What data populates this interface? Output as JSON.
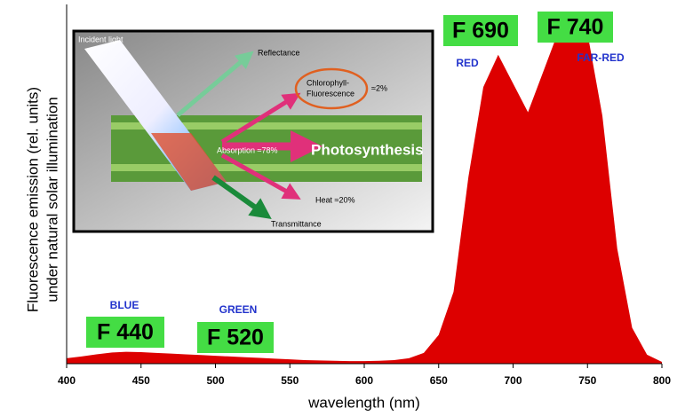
{
  "chart_data": {
    "type": "area",
    "x": [
      400,
      410,
      420,
      430,
      440,
      450,
      460,
      470,
      480,
      490,
      500,
      510,
      520,
      530,
      540,
      550,
      560,
      570,
      580,
      590,
      600,
      610,
      620,
      630,
      640,
      650,
      660,
      670,
      680,
      690,
      700,
      710,
      720,
      730,
      740,
      750,
      760,
      770,
      780,
      790,
      800
    ],
    "values": [
      1.5,
      2,
      2.6,
      3.1,
      3.3,
      3.2,
      3.0,
      2.8,
      2.6,
      2.4,
      2.2,
      2.0,
      1.8,
      1.6,
      1.4,
      1.2,
      1.0,
      0.9,
      0.8,
      0.7,
      0.7,
      0.8,
      1.0,
      1.5,
      3,
      8,
      20,
      52,
      77,
      86,
      78,
      70,
      81,
      92,
      96,
      92,
      69,
      32,
      10,
      2.5,
      0.5
    ],
    "color": "#dd0000",
    "xlim": [
      400,
      800
    ],
    "xticks": [
      400,
      450,
      500,
      550,
      600,
      650,
      700,
      750,
      800
    ],
    "ylim": [
      0,
      100
    ],
    "xlabel": "wavelength  (nm)",
    "ylabel": [
      "Fluorescence emission (rel. units)",
      "under natural solar illumination"
    ],
    "peaks": [
      {
        "label": "F 440",
        "band": "BLUE"
      },
      {
        "label": "F 520",
        "band": "GREEN"
      },
      {
        "label": "F 690",
        "band": "RED"
      },
      {
        "label": "F 740",
        "band": "FAR-RED"
      }
    ],
    "inset": {
      "incident": "Incident light",
      "reflectance": "Reflectance",
      "fluorescence": [
        "Chlorophyll-",
        "Fluorescence"
      ],
      "fluorescence_share": "≈2%",
      "absorption": "Absorption ≈78%",
      "photosynthesis": "Photosynthesis",
      "heat": "Heat ≈20%",
      "transmittance": "Transmittance"
    }
  }
}
